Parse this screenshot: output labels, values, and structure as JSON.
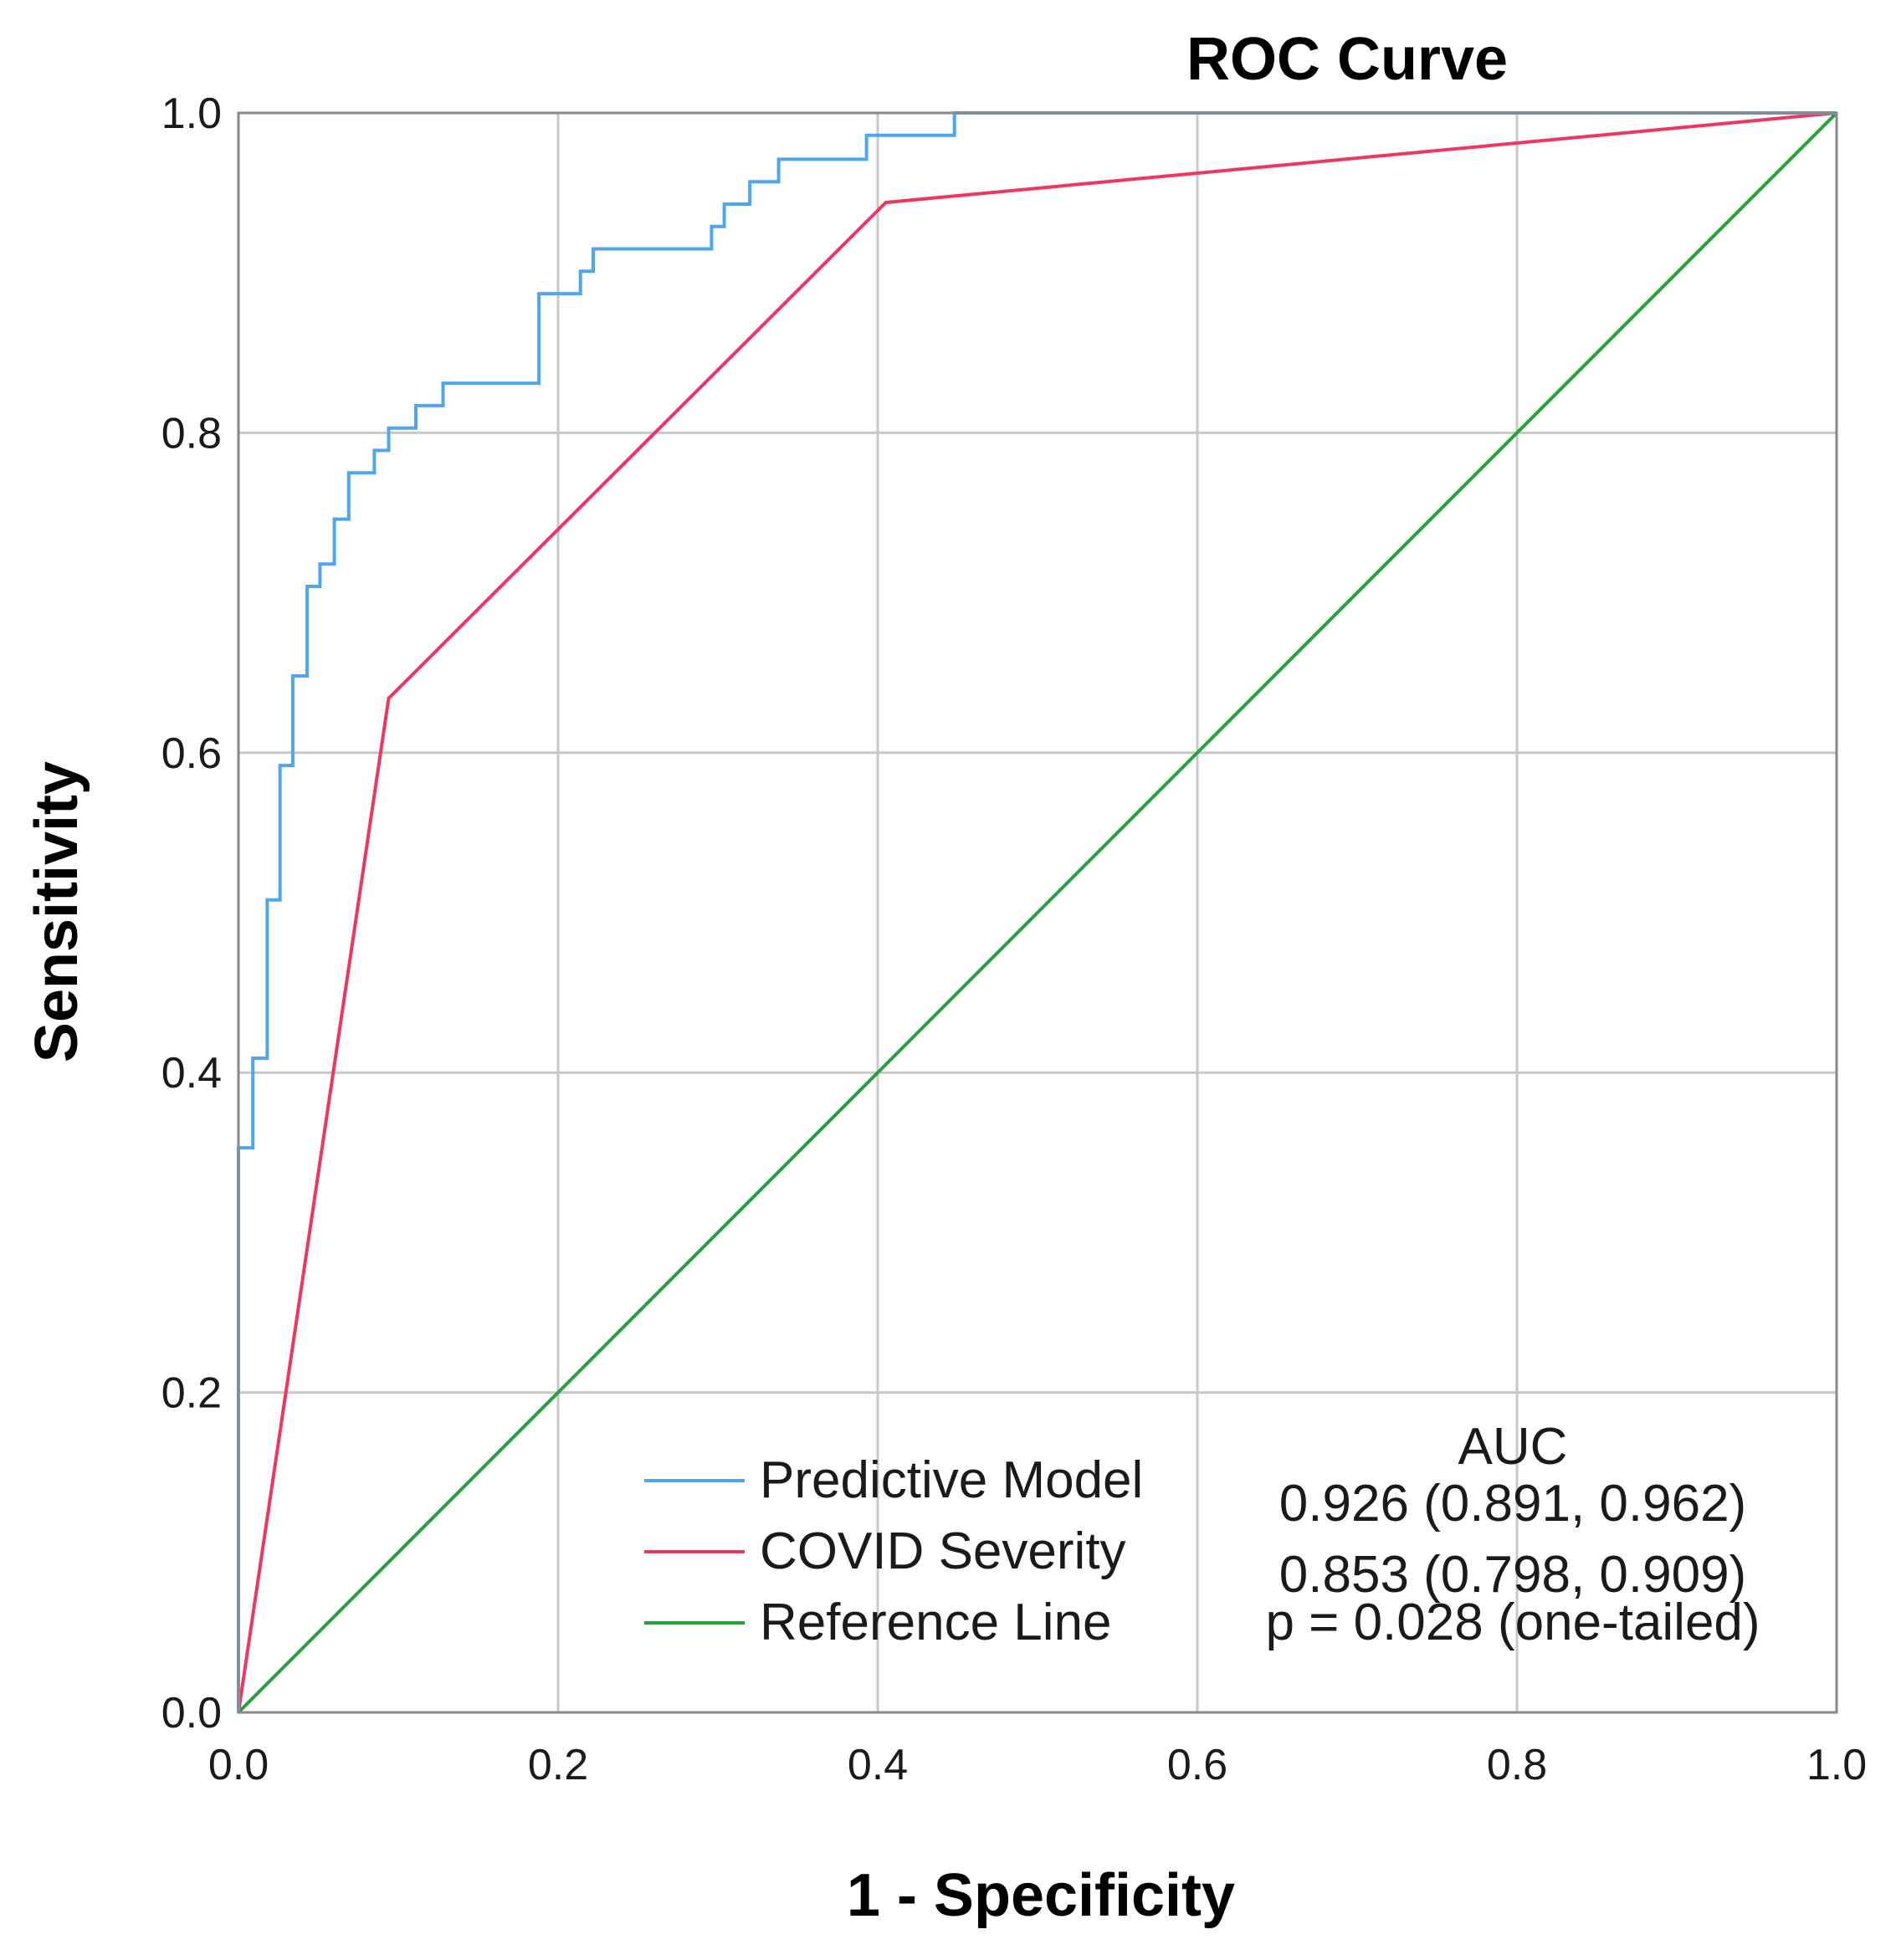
{
  "chart_data": {
    "type": "line",
    "title": "ROC Curve",
    "xlabel": "1 - Specificity",
    "ylabel": "Sensitivity",
    "xlim": [
      0,
      1
    ],
    "ylim": [
      0,
      1
    ],
    "xticks": [
      "0.0",
      "0.2",
      "0.4",
      "0.6",
      "0.8",
      "1.0"
    ],
    "yticks": [
      "0.0",
      "0.2",
      "0.4",
      "0.6",
      "0.8",
      "1.0"
    ],
    "grid": true,
    "legend_placement": "bottom-right",
    "auc_header": "AUC",
    "p_value_text": "p = 0.028 (one-tailed)",
    "series": [
      {
        "name": "Predictive Model",
        "color": "#4da6ee",
        "auc_text": "0.926 (0.891, 0.962)",
        "step": true,
        "x": [
          0,
          0,
          0.009,
          0.009,
          0.018,
          0.018,
          0.026,
          0.026,
          0.034,
          0.034,
          0.043,
          0.043,
          0.051,
          0.051,
          0.06,
          0.06,
          0.069,
          0.069,
          0.085,
          0.085,
          0.094,
          0.094,
          0.111,
          0.111,
          0.128,
          0.128,
          0.188,
          0.188,
          0.214,
          0.214,
          0.222,
          0.222,
          0.296,
          0.296,
          0.304,
          0.304,
          0.32,
          0.32,
          0.338,
          0.338,
          0.393,
          0.393,
          0.448,
          0.448,
          0.568,
          0.568,
          1.0
        ],
        "y": [
          0,
          0.353,
          0.353,
          0.409,
          0.409,
          0.508,
          0.508,
          0.592,
          0.592,
          0.648,
          0.648,
          0.704,
          0.704,
          0.718,
          0.718,
          0.746,
          0.746,
          0.775,
          0.775,
          0.789,
          0.789,
          0.803,
          0.803,
          0.817,
          0.817,
          0.831,
          0.831,
          0.887,
          0.887,
          0.901,
          0.901,
          0.915,
          0.915,
          0.929,
          0.929,
          0.943,
          0.943,
          0.957,
          0.957,
          0.971,
          0.971,
          0.986,
          0.986,
          1.0,
          1.0,
          1.0,
          1.0
        ]
      },
      {
        "name": "COVID Severity",
        "color": "#f0355f",
        "auc_text": "0.853 (0.798, 0.909)",
        "step": false,
        "x": [
          0,
          0.094,
          0.405,
          1.0
        ],
        "y": [
          0,
          0.634,
          0.944,
          1.0
        ]
      },
      {
        "name": "Reference Line",
        "color": "#23a33a",
        "auc_text": "",
        "step": false,
        "x": [
          0,
          1
        ],
        "y": [
          0,
          1
        ]
      }
    ]
  }
}
